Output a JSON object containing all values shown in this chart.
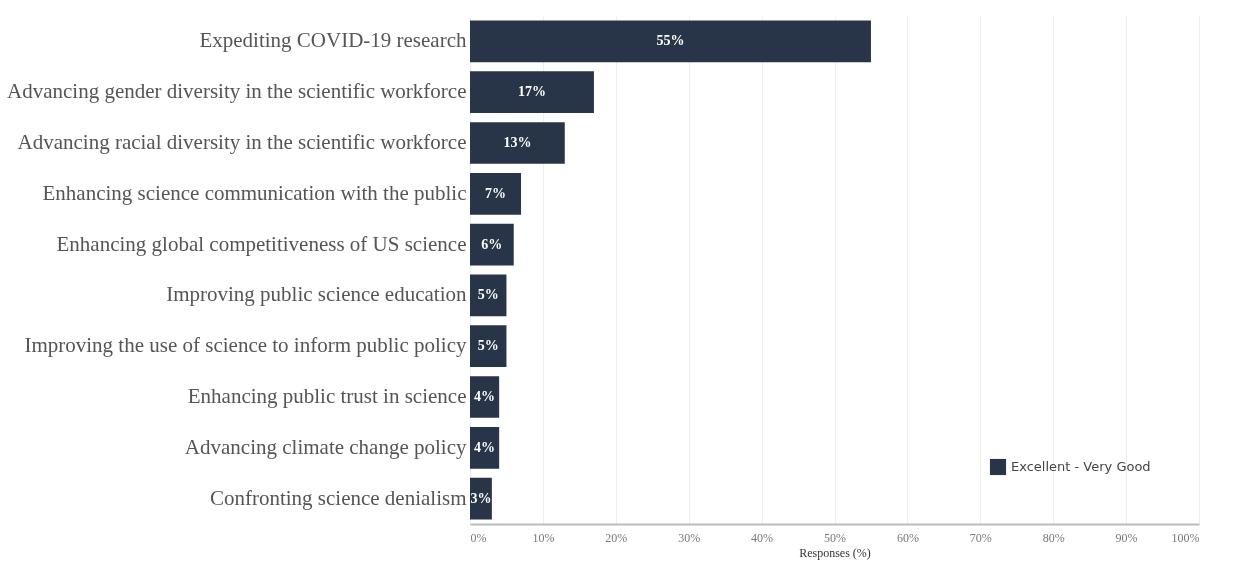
{
  "chart_data": {
    "type": "bar",
    "orientation": "horizontal",
    "xlabel": "Responses (%)",
    "categories": [
      "Expediting COVID-19 research",
      "Advancing gender diversity in the scientific workforce",
      "Advancing racial diversity in the scientific workforce",
      "Enhancing science communication with the public",
      "Enhancing global competitiveness of US science",
      "Improving public science education",
      "Improving the use of science to inform public policy",
      "Enhancing public trust in science",
      "Advancing climate change policy",
      "Confronting science denialism"
    ],
    "series": [
      {
        "name": "Excellent - Very Good",
        "color": "#283447",
        "values": [
          55,
          17,
          13,
          7,
          6,
          5,
          5,
          4,
          4,
          3
        ],
        "value_labels": [
          "55%",
          "17%",
          "13%",
          "7%",
          "6%",
          "5%",
          "5%",
          "4%",
          "4%",
          "3%"
        ]
      }
    ],
    "xlim": [
      0,
      100
    ],
    "xticks": [
      {
        "value": 0,
        "label": "0%"
      },
      {
        "value": 10,
        "label": "10%"
      },
      {
        "value": 20,
        "label": "20%"
      },
      {
        "value": 30,
        "label": "30%"
      },
      {
        "value": 40,
        "label": "40%"
      },
      {
        "value": 50,
        "label": "50%"
      },
      {
        "value": 60,
        "label": "60%"
      },
      {
        "value": 70,
        "label": "70%"
      },
      {
        "value": 80,
        "label": "80%"
      },
      {
        "value": 90,
        "label": "90%"
      },
      {
        "value": 100,
        "label": "100%"
      }
    ],
    "grid": "x",
    "legend": "bottom right"
  }
}
